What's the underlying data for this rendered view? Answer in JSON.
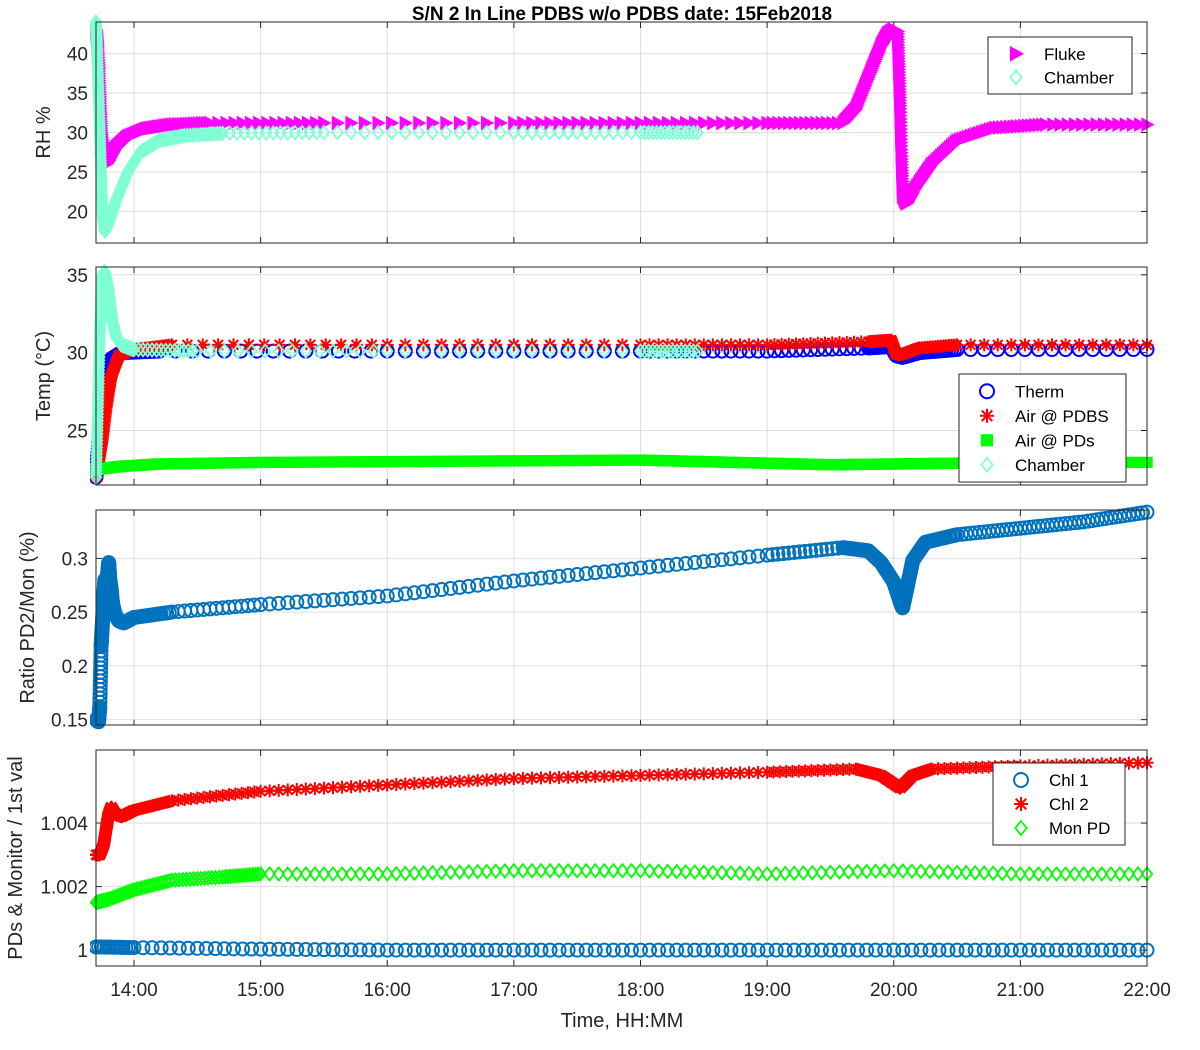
{
  "title": "S/N 2 In Line PDBS w/o PDBS date: 15Feb2018",
  "xlabel": "Time, HH:MM",
  "xticks": [
    "14:00",
    "15:00",
    "16:00",
    "17:00",
    "18:00",
    "19:00",
    "20:00",
    "21:00",
    "22:00"
  ],
  "chart_data": [
    {
      "type": "scatter",
      "ylabel": "RH %",
      "xlim_hours": [
        13.7,
        22.0
      ],
      "ylim": [
        16,
        44
      ],
      "yticks": [
        20,
        25,
        30,
        35,
        40
      ],
      "grid": true,
      "legend_position": "top-right",
      "series": [
        {
          "name": "Fluke",
          "color": "#ff00ff",
          "marker": "triangle-right",
          "points": [
            [
              13.7,
              43
            ],
            [
              13.71,
              41
            ],
            [
              13.72,
              38
            ],
            [
              13.73,
              34
            ],
            [
              13.74,
              30
            ],
            [
              13.76,
              27
            ],
            [
              13.78,
              26
            ],
            [
              13.8,
              26.5
            ],
            [
              13.85,
              28
            ],
            [
              13.95,
              29.5
            ],
            [
              14.1,
              30.5
            ],
            [
              14.3,
              31
            ],
            [
              14.6,
              31.2
            ],
            [
              15.5,
              31.2
            ],
            [
              17.0,
              31.2
            ],
            [
              18.0,
              31.2
            ],
            [
              19.0,
              31.2
            ],
            [
              19.6,
              31.2
            ],
            [
              19.7,
              33
            ],
            [
              19.8,
              37
            ],
            [
              19.9,
              41
            ],
            [
              19.95,
              42.5
            ],
            [
              20.0,
              43
            ],
            [
              20.03,
              42.8
            ],
            [
              20.04,
              38
            ],
            [
              20.05,
              33
            ],
            [
              20.06,
              27
            ],
            [
              20.07,
              22
            ],
            [
              20.1,
              21
            ],
            [
              20.15,
              22.5
            ],
            [
              20.3,
              26
            ],
            [
              20.5,
              29
            ],
            [
              20.8,
              30.6
            ],
            [
              21.2,
              31
            ],
            [
              22.0,
              31
            ]
          ]
        },
        {
          "name": "Chamber",
          "color": "#7fffd4",
          "marker": "diamond",
          "points": [
            [
              13.7,
              44
            ],
            [
              13.71,
              40
            ],
            [
              13.72,
              35
            ],
            [
              13.73,
              30
            ],
            [
              13.74,
              25
            ],
            [
              13.75,
              20
            ],
            [
              13.77,
              17.5
            ],
            [
              13.8,
              18.5
            ],
            [
              13.85,
              21
            ],
            [
              13.95,
              25
            ],
            [
              14.05,
              27.5
            ],
            [
              14.2,
              29
            ],
            [
              14.4,
              29.6
            ],
            [
              14.7,
              29.9
            ],
            [
              15.5,
              30
            ],
            [
              17.0,
              30
            ],
            [
              18.0,
              30
            ],
            [
              18.45,
              30
            ]
          ]
        }
      ]
    },
    {
      "type": "scatter",
      "ylabel": "Temp (°C)",
      "xlim_hours": [
        13.7,
        22.0
      ],
      "ylim": [
        21.5,
        35.5
      ],
      "yticks": [
        25,
        30,
        35
      ],
      "grid": true,
      "legend_position": "middle-right",
      "series": [
        {
          "name": "Therm",
          "color": "#0000ff",
          "marker": "circle",
          "points": [
            [
              13.7,
              22
            ],
            [
              13.72,
              24
            ],
            [
              13.75,
              26.5
            ],
            [
              13.78,
              28.5
            ],
            [
              13.82,
              29.6
            ],
            [
              13.9,
              30
            ],
            [
              14.2,
              30.1
            ],
            [
              16.0,
              30.1
            ],
            [
              18.0,
              30.1
            ],
            [
              19.0,
              30.1
            ],
            [
              19.8,
              30.3
            ],
            [
              19.98,
              30.4
            ],
            [
              20.02,
              29.8
            ],
            [
              20.07,
              29.7
            ],
            [
              20.2,
              30
            ],
            [
              20.5,
              30.2
            ],
            [
              22.0,
              30.2
            ]
          ]
        },
        {
          "name": "Air @ PDBS",
          "color": "#ff0000",
          "marker": "asterisk",
          "points": [
            [
              13.7,
              22
            ],
            [
              13.72,
              23
            ],
            [
              13.75,
              24.5
            ],
            [
              13.78,
              26.5
            ],
            [
              13.82,
              28.5
            ],
            [
              13.88,
              29.8
            ],
            [
              14.0,
              30.2
            ],
            [
              14.3,
              30.5
            ],
            [
              16.0,
              30.5
            ],
            [
              18.0,
              30.5
            ],
            [
              19.0,
              30.5
            ],
            [
              19.8,
              30.7
            ],
            [
              19.98,
              30.8
            ],
            [
              20.02,
              29.9
            ],
            [
              20.07,
              29.9
            ],
            [
              20.2,
              30.3
            ],
            [
              20.5,
              30.5
            ],
            [
              22.0,
              30.5
            ]
          ]
        },
        {
          "name": "Air @ PDs",
          "color": "#00ff00",
          "marker": "square",
          "points": [
            [
              13.7,
              22.5
            ],
            [
              13.9,
              22.7
            ],
            [
              14.2,
              22.85
            ],
            [
              15.0,
              22.95
            ],
            [
              16.0,
              23
            ],
            [
              17.0,
              23.05
            ],
            [
              18.0,
              23.1
            ],
            [
              18.5,
              23
            ],
            [
              19.0,
              22.9
            ],
            [
              19.5,
              22.8
            ],
            [
              20.0,
              22.85
            ],
            [
              20.5,
              22.9
            ],
            [
              21.0,
              22.95
            ],
            [
              22.0,
              22.95
            ]
          ]
        },
        {
          "name": "Chamber",
          "color": "#7fffd4",
          "marker": "diamond",
          "points": [
            [
              13.7,
              22
            ],
            [
              13.71,
              25
            ],
            [
              13.72,
              28
            ],
            [
              13.73,
              31
            ],
            [
              13.74,
              33.5
            ],
            [
              13.75,
              35
            ],
            [
              13.77,
              35.2
            ],
            [
              13.8,
              34
            ],
            [
              13.83,
              32
            ],
            [
              13.86,
              31
            ],
            [
              13.9,
              30.5
            ],
            [
              14.0,
              30.2
            ],
            [
              14.5,
              30.1
            ],
            [
              16.0,
              30.1
            ],
            [
              18.0,
              30.1
            ],
            [
              18.45,
              30.1
            ]
          ]
        }
      ]
    },
    {
      "type": "scatter",
      "ylabel": "Ratio PD2/Mon (%)",
      "xlim_hours": [
        13.7,
        22.0
      ],
      "ylim": [
        0.145,
        0.345
      ],
      "yticks": [
        0.15,
        0.2,
        0.25,
        0.3
      ],
      "grid": true,
      "series": [
        {
          "name": "",
          "color": "#0072bd",
          "marker": "circle",
          "points": [
            [
              13.7,
              0.15
            ],
            [
              13.72,
              0.148
            ],
            [
              13.73,
              0.162
            ],
            [
              13.74,
              0.218
            ],
            [
              13.75,
              0.238
            ],
            [
              13.76,
              0.262
            ],
            [
              13.77,
              0.28
            ],
            [
              13.79,
              0.282
            ],
            [
              13.8,
              0.296
            ],
            [
              13.81,
              0.279
            ],
            [
              13.82,
              0.271
            ],
            [
              13.83,
              0.258
            ],
            [
              13.85,
              0.248
            ],
            [
              13.88,
              0.242
            ],
            [
              13.92,
              0.24
            ],
            [
              14.0,
              0.245
            ],
            [
              14.3,
              0.25
            ],
            [
              15.0,
              0.257
            ],
            [
              16.0,
              0.265
            ],
            [
              17.0,
              0.279
            ],
            [
              18.0,
              0.291
            ],
            [
              19.0,
              0.303
            ],
            [
              19.6,
              0.31
            ],
            [
              19.8,
              0.307
            ],
            [
              19.9,
              0.296
            ],
            [
              20.0,
              0.278
            ],
            [
              20.05,
              0.26
            ],
            [
              20.07,
              0.254
            ],
            [
              20.1,
              0.27
            ],
            [
              20.15,
              0.298
            ],
            [
              20.25,
              0.315
            ],
            [
              20.5,
              0.322
            ],
            [
              21.0,
              0.328
            ],
            [
              21.5,
              0.334
            ],
            [
              22.0,
              0.343
            ]
          ]
        }
      ]
    },
    {
      "type": "scatter",
      "ylabel": "PDs & Monitor / 1st val",
      "xlim_hours": [
        13.7,
        22.0
      ],
      "ylim": [
        0.9995,
        1.0063
      ],
      "yticks": [
        1,
        1.002,
        1.004
      ],
      "grid": true,
      "legend_position": "top-right",
      "series": [
        {
          "name": "Chl 1",
          "color": "#0072bd",
          "marker": "circle",
          "points": [
            [
              13.7,
              1.0001
            ],
            [
              14.0,
              1.00008
            ],
            [
              15.0,
              1.00003
            ],
            [
              16.0,
              1.0
            ],
            [
              17.0,
              1.0
            ],
            [
              18.0,
              1.0
            ],
            [
              19.0,
              1.0
            ],
            [
              20.0,
              1.0
            ],
            [
              21.0,
              1.0
            ],
            [
              22.0,
              1.0
            ]
          ]
        },
        {
          "name": "Chl 2",
          "color": "#ff0000",
          "marker": "asterisk",
          "points": [
            [
              13.7,
              1.003
            ],
            [
              13.73,
              1.003
            ],
            [
              13.76,
              1.0033
            ],
            [
              13.78,
              1.0038
            ],
            [
              13.8,
              1.0043
            ],
            [
              13.82,
              1.0045
            ],
            [
              13.85,
              1.0043
            ],
            [
              13.9,
              1.0042
            ],
            [
              14.0,
              1.0044
            ],
            [
              14.3,
              1.0047
            ],
            [
              15.0,
              1.005
            ],
            [
              16.0,
              1.0052
            ],
            [
              17.0,
              1.0054
            ],
            [
              18.0,
              1.0055
            ],
            [
              19.0,
              1.0056
            ],
            [
              19.7,
              1.0057
            ],
            [
              19.9,
              1.0055
            ],
            [
              20.05,
              1.0051
            ],
            [
              20.15,
              1.0055
            ],
            [
              20.3,
              1.0057
            ],
            [
              21.0,
              1.0058
            ],
            [
              22.0,
              1.0059
            ]
          ]
        },
        {
          "name": "Mon PD",
          "color": "#00ff00",
          "marker": "diamond",
          "points": [
            [
              13.7,
              1.0015
            ],
            [
              13.8,
              1.0016
            ],
            [
              14.0,
              1.0019
            ],
            [
              14.3,
              1.0022
            ],
            [
              14.7,
              1.0023
            ],
            [
              15.0,
              1.0024
            ],
            [
              16.0,
              1.0024
            ],
            [
              17.0,
              1.0025
            ],
            [
              18.0,
              1.0025
            ],
            [
              19.0,
              1.0024
            ],
            [
              20.0,
              1.0025
            ],
            [
              21.0,
              1.0024
            ],
            [
              22.0,
              1.0024
            ]
          ]
        }
      ]
    }
  ]
}
